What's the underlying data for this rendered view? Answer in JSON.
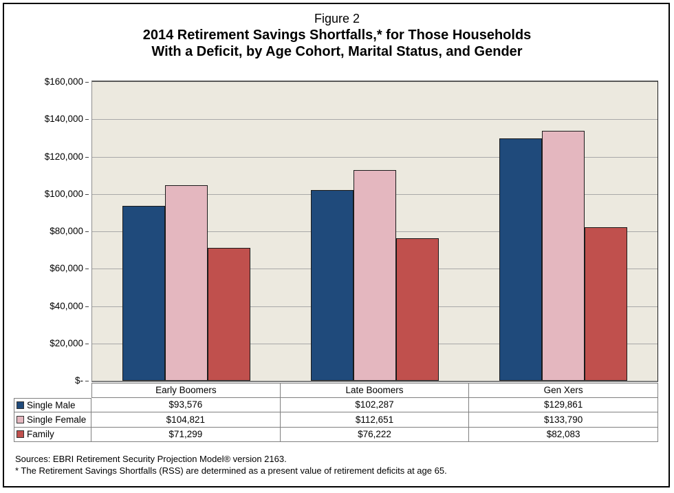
{
  "title": {
    "figure": "Figure 2",
    "line1": "2014 Retirement Savings Shortfalls,* for Those Households",
    "line2": "With a Deficit, by Age Cohort, Marital Status, and Gender"
  },
  "chart_data": {
    "type": "bar",
    "title": "2014 Retirement Savings Shortfalls, for Those Households With a Deficit, by Age Cohort, Marital Status, and Gender",
    "categories": [
      "Early Boomers",
      "Late Boomers",
      "Gen Xers"
    ],
    "series": [
      {
        "name": "Single Male",
        "color": "#1F4A7B",
        "values": [
          93576,
          102287,
          129861
        ],
        "labels": [
          "$93,576",
          "$102,287",
          "$129,861"
        ]
      },
      {
        "name": "Single Female",
        "color": "#E4B7BF",
        "values": [
          104821,
          112651,
          133790
        ],
        "labels": [
          "$104,821",
          "$112,651",
          "$133,790"
        ]
      },
      {
        "name": "Family",
        "color": "#C0504D",
        "values": [
          71299,
          76222,
          82083
        ],
        "labels": [
          "$71,299",
          "$76,222",
          "$82,083"
        ]
      }
    ],
    "xlabel": "",
    "ylabel": "",
    "ylim": [
      0,
      160000
    ],
    "ytick_step": 20000,
    "ytick_labels": [
      "$-",
      "$20,000",
      "$40,000",
      "$60,000",
      "$80,000",
      "$100,000",
      "$120,000",
      "$140,000",
      "$160,000"
    ],
    "grid": true,
    "legend_position": "table-left",
    "plot_bg_color": "#ECE9DF",
    "gridline_color": "#A8A8A8",
    "bar_border_color": "#1a1a1a"
  },
  "footnotes": [
    "Sources: EBRI Retirement Security Projection Model® version 2163.",
    "* The Retirement Savings Shortfalls (RSS) are determined as a present value of retirement deficits at age 65."
  ]
}
